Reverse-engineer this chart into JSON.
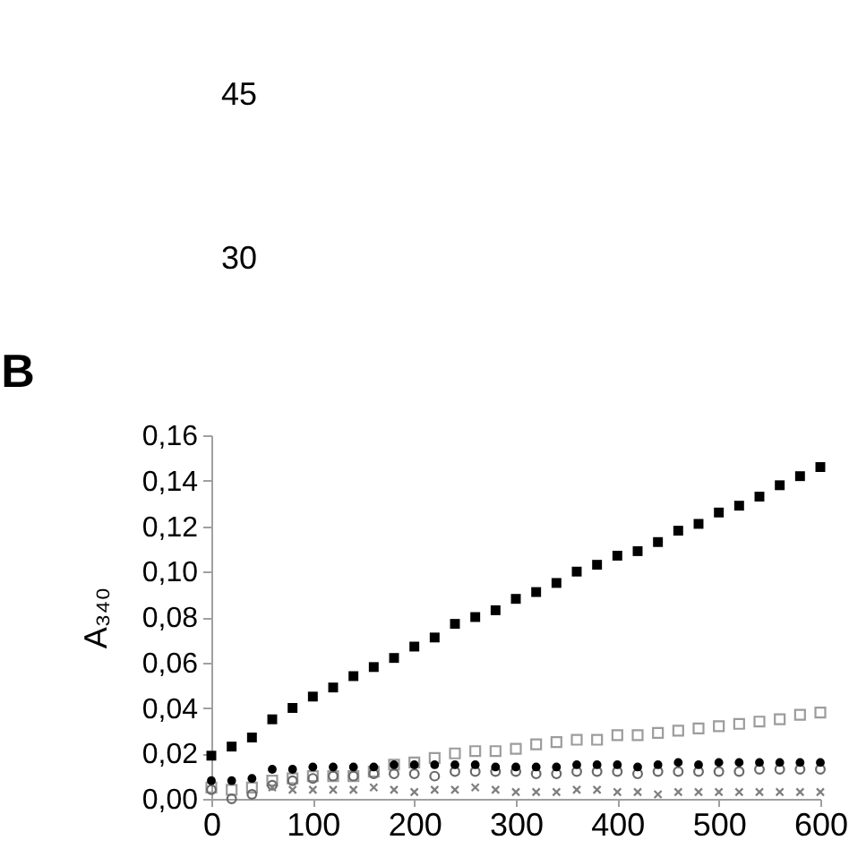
{
  "chart_data": {
    "type": "scatter",
    "ylabel": "A₃₄₀",
    "annotations": [
      "45",
      "30",
      "B"
    ],
    "x": [
      0,
      20,
      40,
      60,
      80,
      100,
      120,
      140,
      160,
      180,
      200,
      220,
      240,
      260,
      280,
      300,
      320,
      340,
      360,
      380,
      400,
      420,
      440,
      460,
      480,
      500,
      520,
      540,
      560,
      580,
      600
    ],
    "xlim": [
      0,
      600
    ],
    "xticks": [
      0,
      100,
      200,
      300,
      400,
      500,
      600
    ],
    "ylim": [
      0,
      0.16
    ],
    "yticks": [
      {
        "value": 0,
        "label": "0,00"
      },
      {
        "value": 0.02,
        "label": "0,02"
      },
      {
        "value": 0.04,
        "label": "0,04"
      },
      {
        "value": 0.06,
        "label": "0,06"
      },
      {
        "value": 0.08,
        "label": "0,08"
      },
      {
        "value": 0.1,
        "label": "0,10"
      },
      {
        "value": 0.12,
        "label": "0,12"
      },
      {
        "value": 0.14,
        "label": "0,14"
      },
      {
        "value": 0.16,
        "label": "0,16"
      }
    ],
    "series": [
      {
        "color": "#000000",
        "marker": "square",
        "values": [
          0.019,
          0.023,
          0.027,
          0.035,
          0.04,
          0.045,
          0.049,
          0.054,
          0.058,
          0.062,
          0.067,
          0.071,
          0.077,
          0.08,
          0.083,
          0.088,
          0.091,
          0.095,
          0.1,
          0.103,
          0.107,
          0.109,
          0.113,
          0.118,
          0.121,
          0.126,
          0.129,
          0.133,
          0.138,
          0.142,
          0.146
        ]
      },
      {
        "color": "#9c9c9c",
        "marker": "square",
        "values": [
          0.005,
          0.004,
          0.005,
          0.008,
          0.009,
          0.01,
          0.01,
          0.01,
          0.012,
          0.015,
          0.016,
          0.018,
          0.02,
          0.021,
          0.021,
          0.022,
          0.024,
          0.025,
          0.026,
          0.026,
          0.028,
          0.028,
          0.029,
          0.03,
          0.031,
          0.032,
          0.033,
          0.034,
          0.035,
          0.037,
          0.038
        ]
      },
      {
        "color": "#6a6a6a",
        "marker": "circle",
        "values": [
          0.004,
          0.0,
          0.002,
          0.006,
          0.008,
          0.009,
          0.01,
          0.01,
          0.011,
          0.011,
          0.011,
          0.01,
          0.012,
          0.012,
          0.012,
          0.012,
          0.011,
          0.011,
          0.012,
          0.012,
          0.012,
          0.011,
          0.012,
          0.012,
          0.012,
          0.012,
          0.012,
          0.013,
          0.013,
          0.013,
          0.013
        ]
      },
      {
        "color": "#000000",
        "marker": "circle",
        "values": [
          0.008,
          0.008,
          0.009,
          0.013,
          0.013,
          0.014,
          0.014,
          0.014,
          0.014,
          0.015,
          0.015,
          0.015,
          0.015,
          0.015,
          0.014,
          0.014,
          0.014,
          0.014,
          0.015,
          0.015,
          0.015,
          0.014,
          0.015,
          0.016,
          0.015,
          0.016,
          0.016,
          0.016,
          0.016,
          0.016,
          0.016
        ]
      },
      {
        "color": "#7f7f7f",
        "marker": "cross",
        "values": [
          null,
          null,
          null,
          0.005,
          0.004,
          0.004,
          0.004,
          0.004,
          0.005,
          0.004,
          0.003,
          0.004,
          0.004,
          0.005,
          0.004,
          0.003,
          0.003,
          0.003,
          0.004,
          0.004,
          0.003,
          0.003,
          0.002,
          0.003,
          0.003,
          0.003,
          0.003,
          0.003,
          0.003,
          0.003,
          0.003
        ]
      }
    ]
  }
}
